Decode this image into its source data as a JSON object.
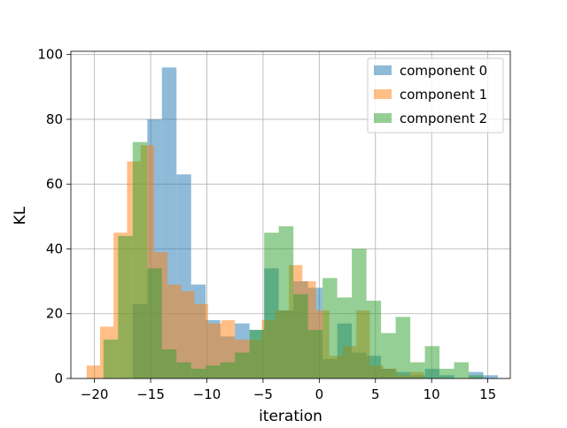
{
  "chart_data": {
    "type": "histogram",
    "title": "",
    "xlabel": "iteration",
    "ylabel": "KL",
    "xlim": [
      -22.1,
      17.0
    ],
    "ylim": [
      0,
      101
    ],
    "xticks": [
      -20,
      -15,
      -10,
      -5,
      0,
      5,
      10,
      15
    ],
    "yticks": [
      0,
      20,
      40,
      60,
      80,
      100
    ],
    "grid": true,
    "legend_position": "top-right",
    "alpha": 0.5,
    "series": [
      {
        "name": "component 0",
        "color": "#1f77b4",
        "bins": [
          {
            "x0": -16.6,
            "x1": -15.3,
            "count": 23
          },
          {
            "x0": -15.3,
            "x1": -14.0,
            "count": 80
          },
          {
            "x0": -14.0,
            "x1": -12.7,
            "count": 96
          },
          {
            "x0": -12.7,
            "x1": -11.4,
            "count": 63
          },
          {
            "x0": -11.4,
            "x1": -10.1,
            "count": 29
          },
          {
            "x0": -10.1,
            "x1": -8.8,
            "count": 18
          },
          {
            "x0": -8.8,
            "x1": -7.5,
            "count": 13
          },
          {
            "x0": -7.5,
            "x1": -6.2,
            "count": 17
          },
          {
            "x0": -6.2,
            "x1": -4.9,
            "count": 15
          },
          {
            "x0": -4.9,
            "x1": -3.6,
            "count": 34
          },
          {
            "x0": -3.6,
            "x1": -2.3,
            "count": 21
          },
          {
            "x0": -2.3,
            "x1": -1.0,
            "count": 30
          },
          {
            "x0": -1.0,
            "x1": 0.3,
            "count": 28
          },
          {
            "x0": 0.3,
            "x1": 1.6,
            "count": 6
          },
          {
            "x0": 1.6,
            "x1": 2.9,
            "count": 17
          },
          {
            "x0": 2.9,
            "x1": 4.2,
            "count": 8
          },
          {
            "x0": 4.2,
            "x1": 5.5,
            "count": 7
          },
          {
            "x0": 5.5,
            "x1": 6.8,
            "count": 3
          },
          {
            "x0": 6.8,
            "x1": 8.1,
            "count": 2
          },
          {
            "x0": 8.1,
            "x1": 9.4,
            "count": 1
          },
          {
            "x0": 9.4,
            "x1": 10.7,
            "count": 3
          },
          {
            "x0": 10.7,
            "x1": 12.0,
            "count": 1
          },
          {
            "x0": 12.0,
            "x1": 13.3,
            "count": 0
          },
          {
            "x0": 13.3,
            "x1": 14.6,
            "count": 2
          },
          {
            "x0": 14.6,
            "x1": 15.9,
            "count": 1
          }
        ]
      },
      {
        "name": "component 1",
        "color": "#ff7f0e",
        "bins": [
          {
            "x0": -20.7,
            "x1": -19.5,
            "count": 4
          },
          {
            "x0": -19.5,
            "x1": -18.3,
            "count": 16
          },
          {
            "x0": -18.3,
            "x1": -17.1,
            "count": 45
          },
          {
            "x0": -17.1,
            "x1": -15.9,
            "count": 67
          },
          {
            "x0": -15.9,
            "x1": -14.7,
            "count": 72
          },
          {
            "x0": -14.7,
            "x1": -13.5,
            "count": 39
          },
          {
            "x0": -13.5,
            "x1": -12.3,
            "count": 29
          },
          {
            "x0": -12.3,
            "x1": -11.1,
            "count": 27
          },
          {
            "x0": -11.1,
            "x1": -9.9,
            "count": 23
          },
          {
            "x0": -9.9,
            "x1": -8.7,
            "count": 17
          },
          {
            "x0": -8.7,
            "x1": -7.5,
            "count": 18
          },
          {
            "x0": -7.5,
            "x1": -6.3,
            "count": 12
          },
          {
            "x0": -6.3,
            "x1": -5.1,
            "count": 12
          },
          {
            "x0": -5.1,
            "x1": -3.9,
            "count": 18
          },
          {
            "x0": -3.9,
            "x1": -2.7,
            "count": 21
          },
          {
            "x0": -2.7,
            "x1": -1.5,
            "count": 35
          },
          {
            "x0": -1.5,
            "x1": -0.3,
            "count": 30
          },
          {
            "x0": -0.3,
            "x1": 0.9,
            "count": 21
          },
          {
            "x0": 0.9,
            "x1": 2.1,
            "count": 7
          },
          {
            "x0": 2.1,
            "x1": 3.3,
            "count": 10
          },
          {
            "x0": 3.3,
            "x1": 4.5,
            "count": 21
          },
          {
            "x0": 4.5,
            "x1": 5.7,
            "count": 4
          },
          {
            "x0": 5.7,
            "x1": 6.9,
            "count": 3
          },
          {
            "x0": 6.9,
            "x1": 8.1,
            "count": 1
          },
          {
            "x0": 8.1,
            "x1": 9.3,
            "count": 2
          }
        ]
      },
      {
        "name": "component 2",
        "color": "#2ca02c",
        "bins": [
          {
            "x0": -19.2,
            "x1": -17.9,
            "count": 12
          },
          {
            "x0": -17.9,
            "x1": -16.6,
            "count": 44
          },
          {
            "x0": -16.6,
            "x1": -15.3,
            "count": 73
          },
          {
            "x0": -15.3,
            "x1": -14.0,
            "count": 34
          },
          {
            "x0": -14.0,
            "x1": -12.7,
            "count": 9
          },
          {
            "x0": -12.7,
            "x1": -11.4,
            "count": 5
          },
          {
            "x0": -11.4,
            "x1": -10.1,
            "count": 3
          },
          {
            "x0": -10.1,
            "x1": -8.8,
            "count": 4
          },
          {
            "x0": -8.8,
            "x1": -7.5,
            "count": 5
          },
          {
            "x0": -7.5,
            "x1": -6.2,
            "count": 8
          },
          {
            "x0": -6.2,
            "x1": -4.9,
            "count": 15
          },
          {
            "x0": -4.9,
            "x1": -3.6,
            "count": 45
          },
          {
            "x0": -3.6,
            "x1": -2.3,
            "count": 47
          },
          {
            "x0": -2.3,
            "x1": -1.0,
            "count": 26
          },
          {
            "x0": -1.0,
            "x1": 0.3,
            "count": 15
          },
          {
            "x0": 0.3,
            "x1": 1.6,
            "count": 31
          },
          {
            "x0": 1.6,
            "x1": 2.9,
            "count": 25
          },
          {
            "x0": 2.9,
            "x1": 4.2,
            "count": 40
          },
          {
            "x0": 4.2,
            "x1": 5.5,
            "count": 24
          },
          {
            "x0": 5.5,
            "x1": 6.8,
            "count": 14
          },
          {
            "x0": 6.8,
            "x1": 8.1,
            "count": 19
          },
          {
            "x0": 8.1,
            "x1": 9.4,
            "count": 5
          },
          {
            "x0": 9.4,
            "x1": 10.7,
            "count": 10
          },
          {
            "x0": 10.7,
            "x1": 12.0,
            "count": 3
          },
          {
            "x0": 12.0,
            "x1": 13.3,
            "count": 5
          },
          {
            "x0": 13.3,
            "x1": 14.6,
            "count": 1
          }
        ]
      }
    ]
  }
}
